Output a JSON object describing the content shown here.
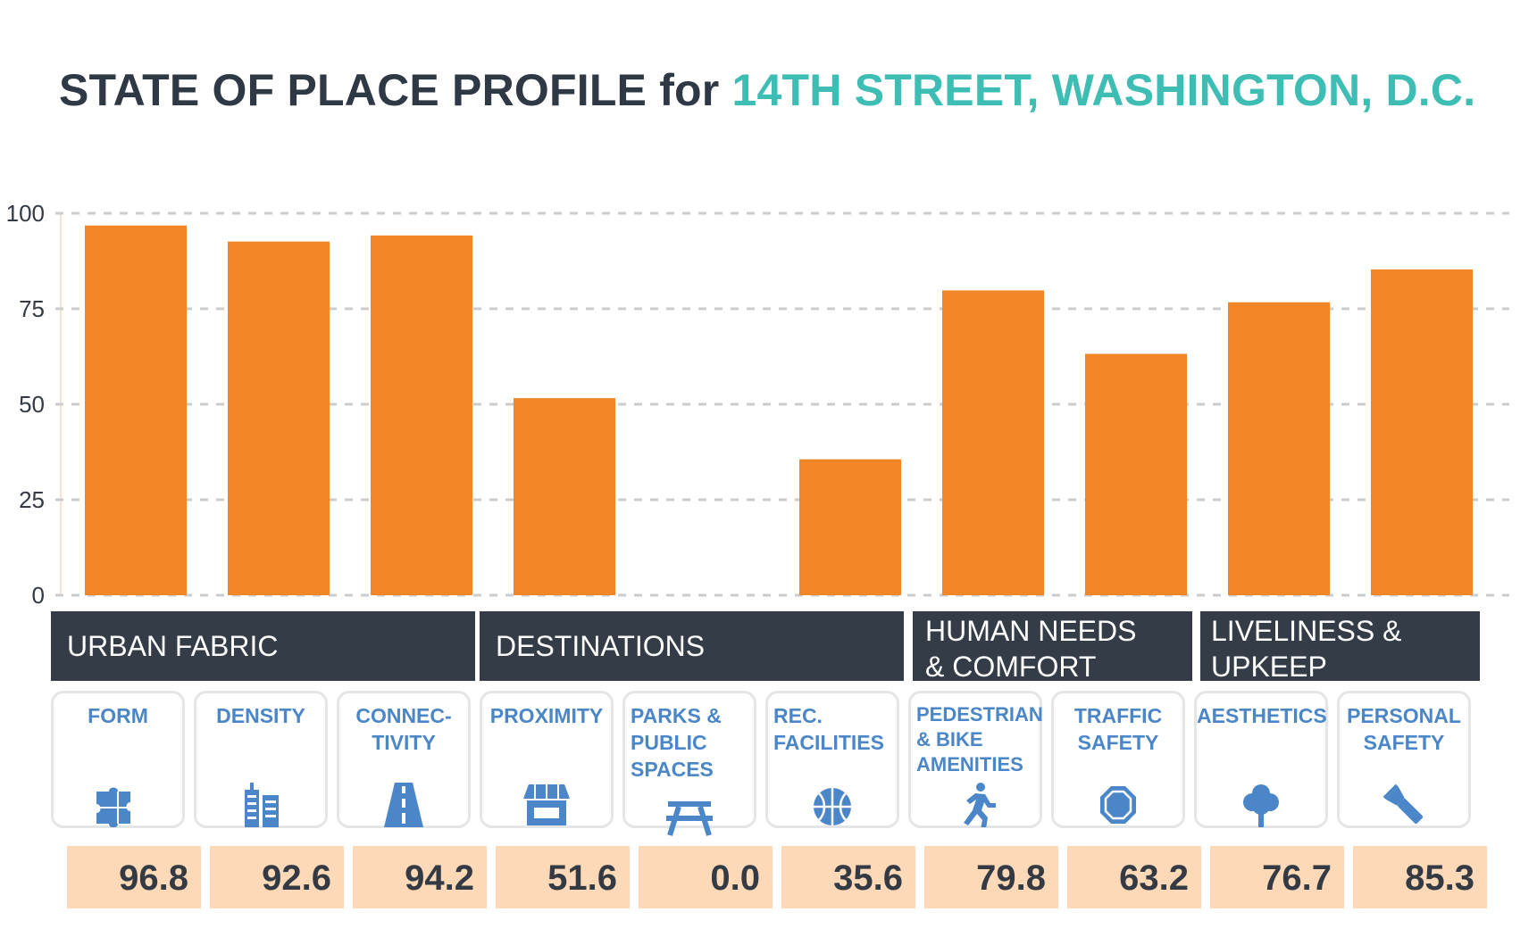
{
  "title": {
    "prefix": "STATE OF PLACE PROFILE for ",
    "location": "14TH STREET, WASHINGTON, D.C."
  },
  "colors": {
    "bar": "#f28526",
    "band": "#333c47",
    "accent": "#3dbdb3",
    "icon": "#4a86c8",
    "value_bg": "#fdd9b7",
    "grid": "#cccccc"
  },
  "categories": [
    {
      "label": "URBAN FABRIC"
    },
    {
      "label": "DESTINATIONS"
    },
    {
      "label": "HUMAN NEEDS\n& COMFORT"
    },
    {
      "label": "LIVELINESS &\nUPKEEP"
    }
  ],
  "chart_data": {
    "type": "bar",
    "categories": [
      "FORM",
      "DENSITY",
      "CONNEC-TIVITY",
      "PROXIMITY",
      "PARKS & PUBLIC SPACES",
      "REC. FACILITIES",
      "PEDESTRIAN & BIKE AMENITIES",
      "TRAFFIC SAFETY",
      "AESTHETICS",
      "PERSONAL SAFETY"
    ],
    "values": [
      96.8,
      92.6,
      94.2,
      51.6,
      0.0,
      35.6,
      79.8,
      63.2,
      76.7,
      85.3
    ],
    "value_labels": [
      "96.8",
      "92.6",
      "94.2",
      "51.6",
      "0.0",
      "35.6",
      "79.8",
      "63.2",
      "76.7",
      "85.3"
    ],
    "yticks": [
      "0",
      "25",
      "50",
      "75",
      "100"
    ],
    "ylim": [
      0,
      100
    ],
    "grid": true
  },
  "cards": [
    {
      "label": "FORM",
      "icon": "puzzle-icon"
    },
    {
      "label": "DENSITY",
      "icon": "buildings-icon"
    },
    {
      "label": "CONNEC-\nTIVITY",
      "icon": "road-icon"
    },
    {
      "label": "PROXIMITY",
      "icon": "storefront-icon"
    },
    {
      "label": "PARKS &\nPUBLIC\nSPACES",
      "icon": "picnic-table-icon"
    },
    {
      "label": "REC.\nFACILITIES",
      "icon": "basketball-icon"
    },
    {
      "label": "PEDESTRIAN\n& BIKE\nAMENITIES",
      "icon": "runner-icon"
    },
    {
      "label": "TRAFFIC\nSAFETY",
      "icon": "stop-sign-icon"
    },
    {
      "label": "AESTHETICS",
      "icon": "tree-icon"
    },
    {
      "label": "PERSONAL\nSAFETY",
      "icon": "flashlight-icon"
    }
  ]
}
